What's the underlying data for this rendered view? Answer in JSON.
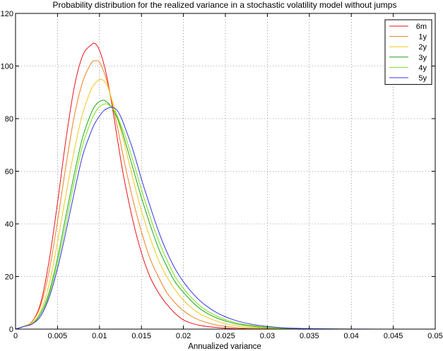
{
  "chart_data": {
    "type": "line",
    "title": "Probability distribution for the realized variance in a stochastic volatility model without jumps",
    "xlabel": "Annualized variance",
    "ylabel": "",
    "xlim": [
      0,
      0.05
    ],
    "ylim": [
      0,
      120
    ],
    "xticks": [
      0,
      0.005,
      0.01,
      0.015,
      0.02,
      0.025,
      0.03,
      0.035,
      0.04,
      0.045,
      0.05
    ],
    "xtick_labels": [
      "0",
      "0.005",
      "0.01",
      "0.015",
      "0.02",
      "0.025",
      "0.03",
      "0.035",
      "0.04",
      "0.045",
      "0.05"
    ],
    "yticks": [
      0,
      20,
      40,
      60,
      80,
      100,
      120
    ],
    "ytick_labels": [
      "0",
      "20",
      "40",
      "60",
      "80",
      "100",
      "120"
    ],
    "grid": true,
    "legend_position": "top-right",
    "x": [
      0,
      0.001,
      0.002,
      0.003,
      0.004,
      0.005,
      0.006,
      0.007,
      0.008,
      0.009,
      0.0095,
      0.01,
      0.0105,
      0.011,
      0.0115,
      0.012,
      0.0125,
      0.013,
      0.014,
      0.015,
      0.016,
      0.017,
      0.018,
      0.019,
      0.02,
      0.021,
      0.022,
      0.023,
      0.024,
      0.025,
      0.026,
      0.027,
      0.028,
      0.029,
      0.03,
      0.032,
      0.034,
      0.036,
      0.038,
      0.04,
      0.045,
      0.05
    ],
    "series": [
      {
        "name": "6m",
        "color": "#e8131b",
        "values": [
          0,
          1,
          3,
          10,
          26,
          48,
          72,
          92,
          104,
          108,
          108.5,
          106,
          101,
          94,
          85,
          75,
          65,
          56,
          41,
          29,
          20,
          14,
          9.5,
          6,
          3.5,
          2.2,
          1.4,
          0.9,
          0.6,
          0.35,
          0.2,
          0.12,
          0.07,
          0.04,
          0.02,
          0,
          0,
          0,
          0,
          0,
          0,
          0
        ]
      },
      {
        "name": "1y",
        "color": "#f07f1e",
        "values": [
          0,
          1,
          3,
          9,
          22,
          41,
          62,
          81,
          94,
          101,
          102,
          101.5,
          98,
          93,
          86,
          79,
          71,
          63,
          49,
          37,
          27,
          20,
          14,
          10,
          7,
          4.8,
          3.3,
          2.3,
          1.5,
          1,
          0.7,
          0.45,
          0.3,
          0.2,
          0.12,
          0.05,
          0,
          0,
          0,
          0,
          0,
          0
        ]
      },
      {
        "name": "2y",
        "color": "#f0c81e",
        "values": [
          0,
          1,
          2.5,
          7,
          17,
          33,
          51,
          68,
          82,
          91,
          93.5,
          94.8,
          94.5,
          92,
          87,
          82,
          76,
          70,
          57,
          45,
          35,
          26.5,
          20,
          15,
          11,
          8,
          5.8,
          4.2,
          3,
          2.1,
          1.5,
          1,
          0.7,
          0.5,
          0.35,
          0.15,
          0.07,
          0.03,
          0,
          0,
          0,
          0
        ]
      },
      {
        "name": "3y",
        "color": "#1aa81a",
        "values": [
          0,
          1,
          2,
          6,
          14,
          27,
          43,
          59,
          73,
          82,
          85,
          86.5,
          87,
          86,
          84,
          81,
          77,
          72,
          61,
          50,
          40,
          31,
          24,
          18,
          14,
          10.5,
          7.7,
          5.7,
          4.2,
          3.1,
          2.2,
          1.6,
          1.2,
          0.8,
          0.6,
          0.3,
          0.15,
          0.07,
          0.03,
          0,
          0,
          0
        ]
      },
      {
        "name": "4y",
        "color": "#7fe014",
        "values": [
          0,
          1,
          2,
          5,
          13,
          25,
          40,
          56,
          70,
          79,
          82.5,
          84.5,
          85.5,
          85.5,
          84,
          82,
          78,
          74,
          64,
          53,
          43,
          34,
          26.5,
          20,
          15.5,
          11.8,
          8.8,
          6.6,
          4.9,
          3.6,
          2.6,
          1.9,
          1.4,
          1,
          0.7,
          0.35,
          0.17,
          0.08,
          0.04,
          0,
          0,
          0
        ]
      },
      {
        "name": "5y",
        "color": "#3535e8",
        "values": [
          0,
          1,
          2,
          5,
          12,
          23,
          37,
          52,
          66,
          75,
          78.5,
          81,
          83,
          84,
          84.3,
          83.5,
          81,
          77,
          68,
          57,
          47,
          37.5,
          29.5,
          23,
          18,
          14,
          10.7,
          8.2,
          6.2,
          4.7,
          3.5,
          2.6,
          1.9,
          1.4,
          1,
          0.5,
          0.25,
          0.12,
          0.06,
          0.03,
          0,
          0
        ]
      }
    ]
  }
}
